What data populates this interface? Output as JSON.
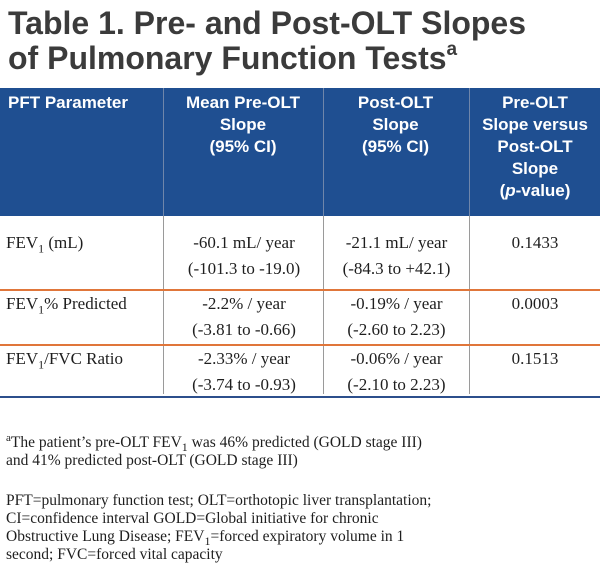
{
  "title": {
    "line1": "Table 1.  Pre- and Post-OLT Slopes",
    "line2": "of Pulmonary Function Tests",
    "marker": "a"
  },
  "columns": [
    {
      "lines": [
        "PFT Parameter"
      ]
    },
    {
      "lines": [
        "Mean Pre-OLT",
        "Slope",
        "(95% CI)"
      ]
    },
    {
      "lines": [
        "Post-OLT",
        "Slope",
        "(95% CI)"
      ]
    },
    {
      "lines": [
        "Pre-OLT",
        "Slope versus",
        "Post-OLT",
        "Slope"
      ],
      "pvalue_open": "(",
      "pvalue_italic": "p",
      "pvalue_close": "-value)"
    }
  ],
  "rows": [
    {
      "param_prefix": "FEV",
      "param_sub": "1",
      "param_suffix": " (mL)",
      "pre": [
        "-60.1 mL/ year",
        "(-101.3 to -19.0)"
      ],
      "post": [
        "-21.1 mL/ year",
        "(-84.3 to +42.1)"
      ],
      "pvalue": "0.1433"
    },
    {
      "param_prefix": "FEV",
      "param_sub": "1",
      "param_suffix": "% Predicted",
      "pre": [
        "-2.2% / year",
        "(-3.81 to -0.66)"
      ],
      "post": [
        "-0.19% / year",
        "(-2.60 to 2.23)"
      ],
      "pvalue": "0.0003"
    },
    {
      "param_prefix": "FEV",
      "param_sub": "1",
      "param_suffix": "/FVC Ratio",
      "pre": [
        "-2.33% / year",
        "(-3.74 to -0.93)"
      ],
      "post": [
        "-0.06% / year",
        "(-2.10 to 2.23)"
      ],
      "pvalue": "0.1513"
    }
  ],
  "footnotes": {
    "a_marker": "a",
    "a_line1_pre": "The patient’s pre-OLT FEV",
    "a_line1_sub": "1",
    "a_line1_post": " was 46% predicted (GOLD stage III)",
    "a_line2": "and 41% predicted post-OLT (GOLD stage III)",
    "abbr_line1": "PFT=pulmonary function test; OLT=orthotopic liver transplantation;",
    "abbr_line2": "CI=confidence interval GOLD=Global initiative for chronic",
    "abbr_line3_pre": "Obstructive Lung Disease; FEV",
    "abbr_line3_sub": "1",
    "abbr_line3_post": "=forced expiratory volume in 1",
    "abbr_line4": "second; FVC=forced vital capacity"
  },
  "colors": {
    "header_bg": "#1f4f91",
    "row_divider": "#e0763a",
    "title_text": "#3b3b3b"
  }
}
